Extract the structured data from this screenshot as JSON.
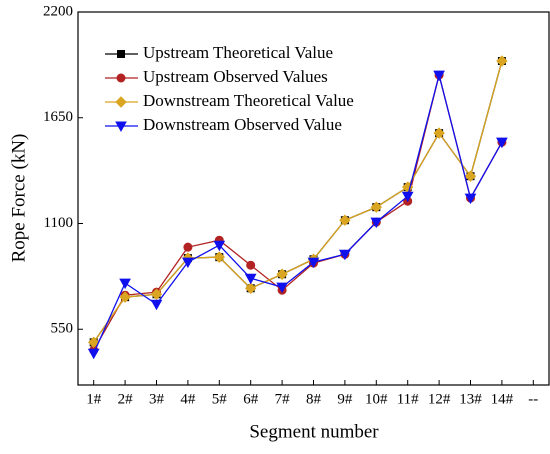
{
  "chart_data": {
    "type": "line",
    "x_label": "Segment number",
    "y_label": "Rope Force (kN)",
    "categories": [
      "1#",
      "2#",
      "3#",
      "4#",
      "5#",
      "6#",
      "7#",
      "8#",
      "9#",
      "10#",
      "11#",
      "12#",
      "13#",
      "14#",
      "--"
    ],
    "series": [
      {
        "name": "Upstream Theoretical Value",
        "color": "#000000",
        "marker": "square",
        "values": [
          482,
          717,
          732,
          920,
          925,
          763,
          836,
          914,
          1117,
          1185,
          1289,
          1570,
          1346,
          1945,
          null
        ]
      },
      {
        "name": "Upstream Observed Values",
        "color": "#b22222",
        "marker": "circle",
        "values": [
          441,
          727,
          743,
          977,
          1013,
          883,
          753,
          894,
          940,
          1107,
          1216,
          1872,
          1232,
          1523,
          null
        ]
      },
      {
        "name": "Downstream Theoretical Value",
        "color": "#daa520",
        "marker": "diamond",
        "values": [
          482,
          717,
          732,
          920,
          925,
          763,
          836,
          914,
          1117,
          1185,
          1289,
          1570,
          1346,
          1945,
          null
        ]
      },
      {
        "name": "Downstream Observed Value",
        "color": "#1010ee",
        "marker": "triangle-down",
        "values": [
          425,
          790,
          680,
          899,
          987,
          815,
          769,
          899,
          940,
          1107,
          1242,
          1872,
          1232,
          1523,
          null
        ]
      }
    ],
    "ylim": [
      260,
      2200
    ],
    "yticks": [
      550,
      1100,
      1650,
      2200
    ],
    "legend": "upper left"
  }
}
